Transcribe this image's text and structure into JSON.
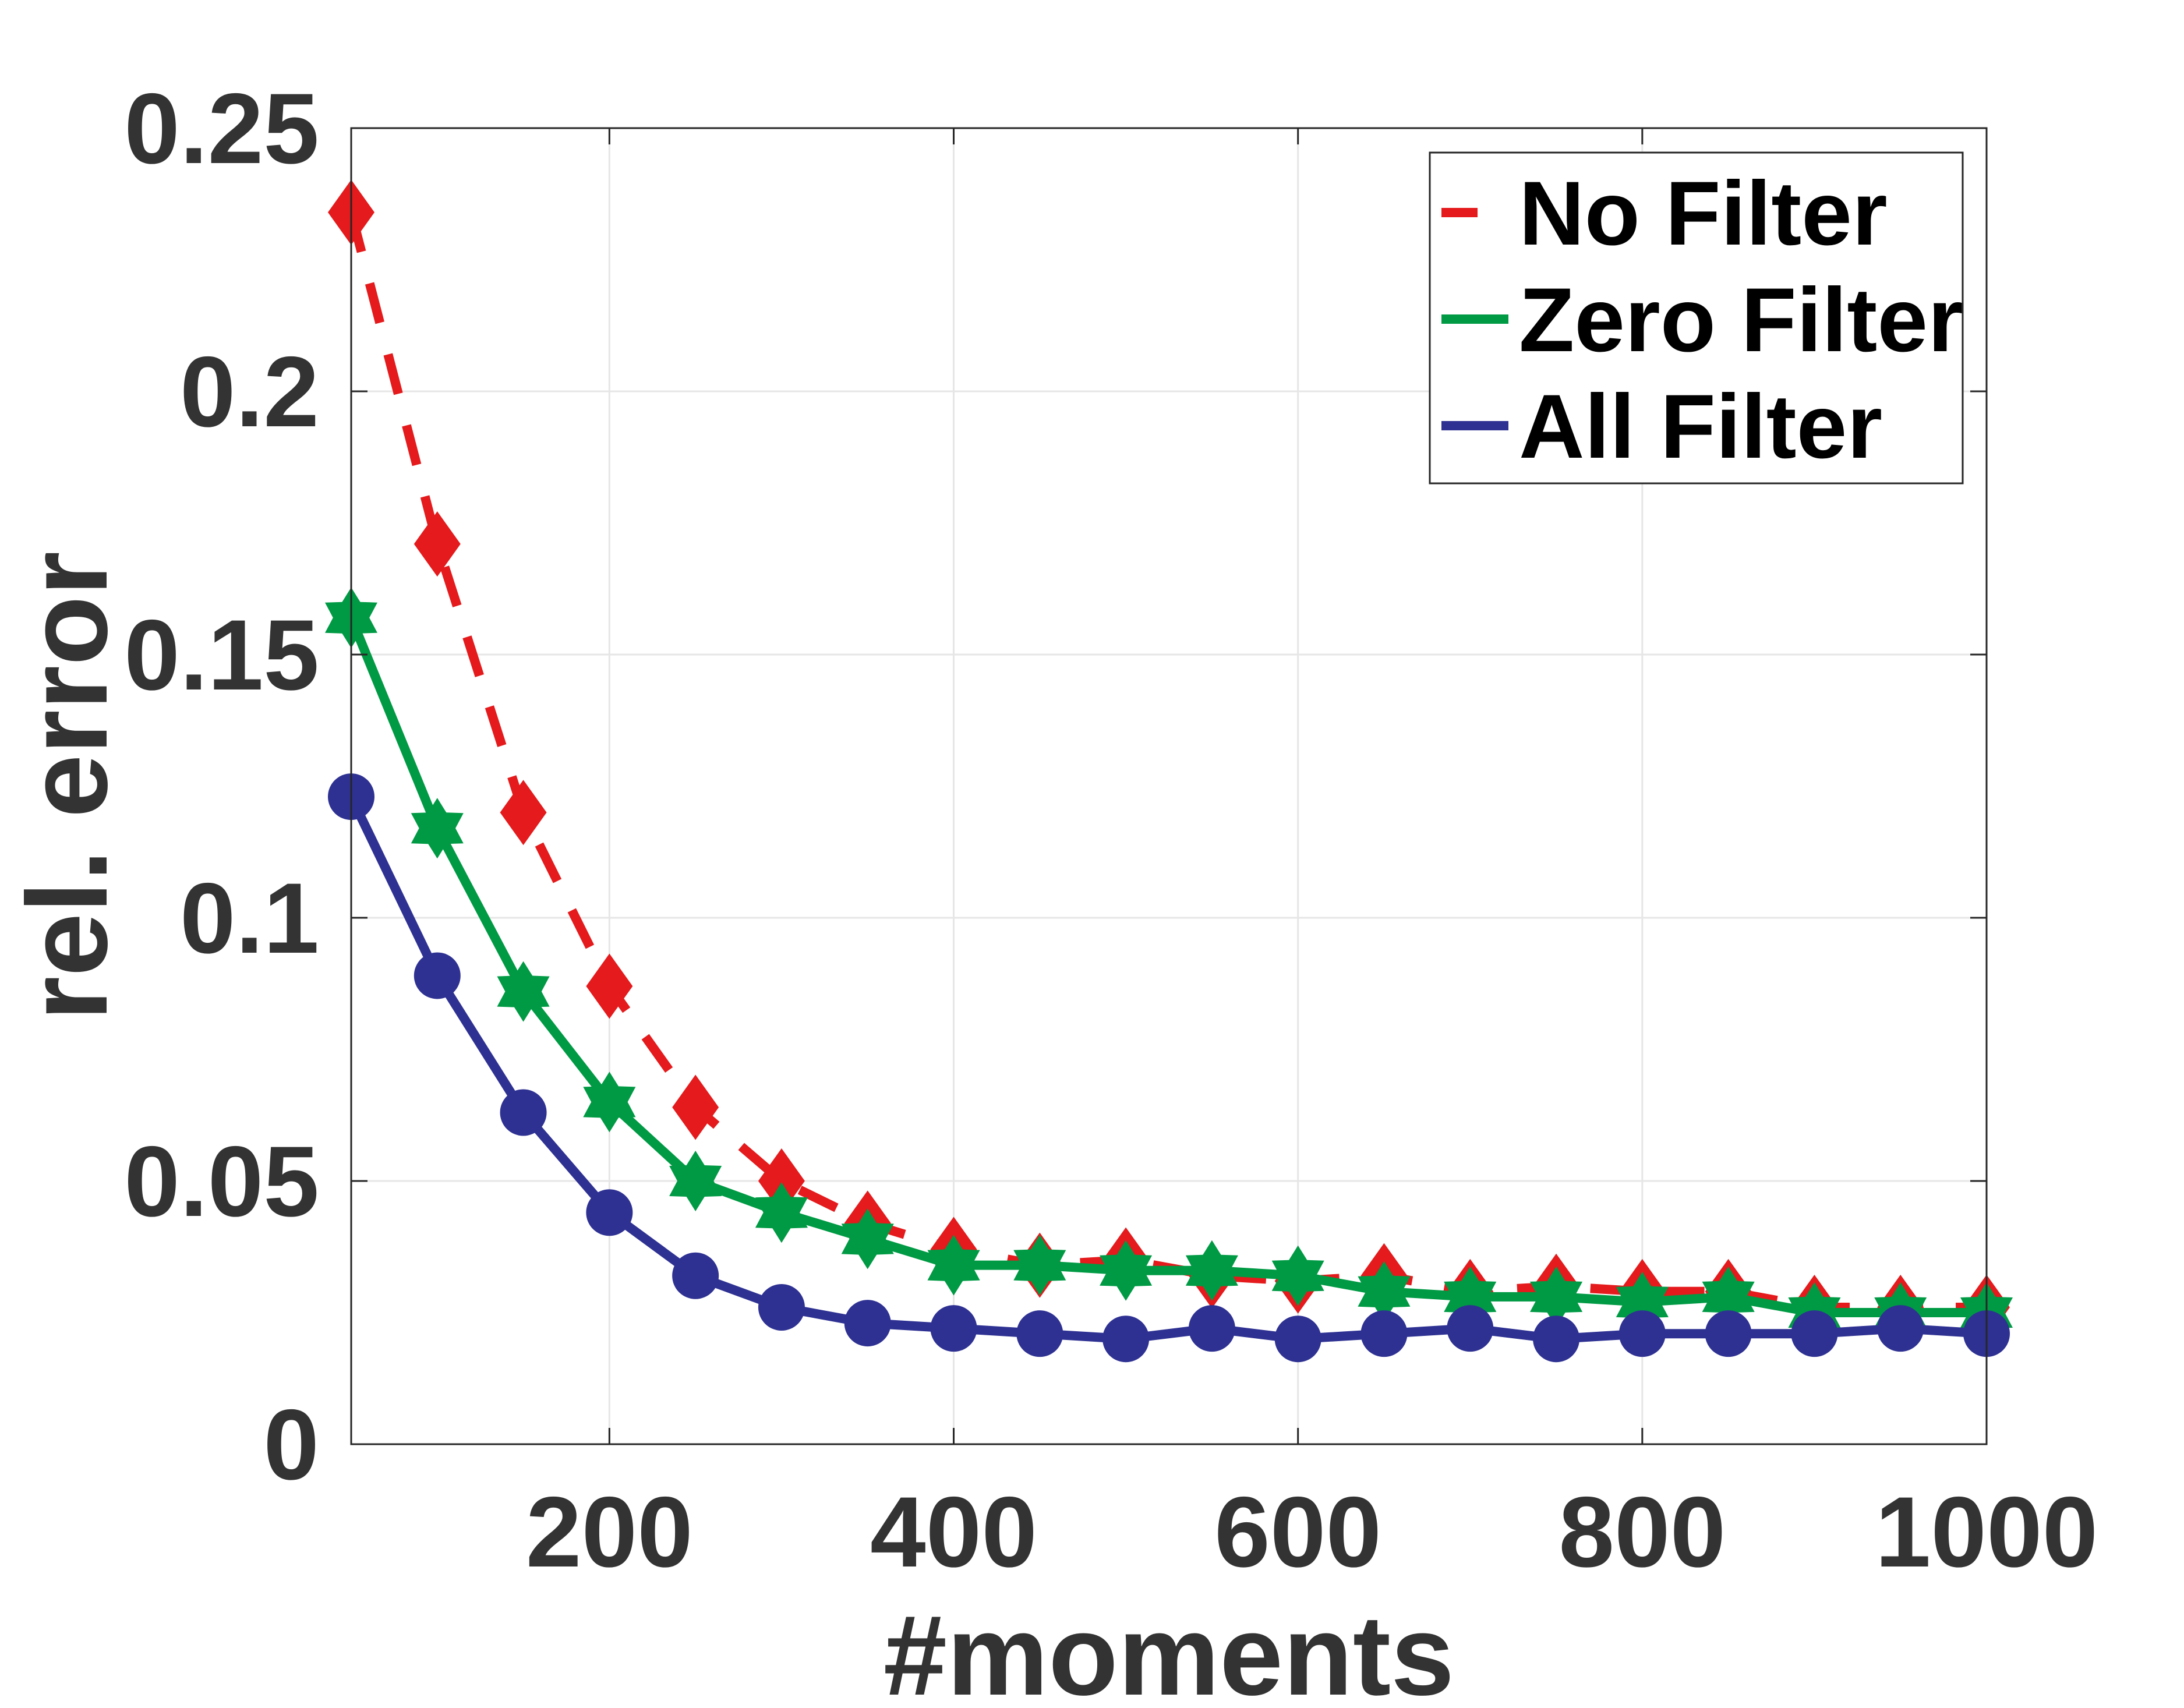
{
  "chart_data": {
    "type": "line",
    "xlabel": "#moments",
    "ylabel": "rel. error",
    "xlim": [
      50,
      1000
    ],
    "ylim": [
      0,
      0.25
    ],
    "xticks": [
      200,
      400,
      600,
      800,
      1000
    ],
    "yticks": [
      0,
      0.05,
      0.1,
      0.15,
      0.2,
      0.25
    ],
    "xtick_labels": [
      "200",
      "400",
      "600",
      "800",
      "1000"
    ],
    "ytick_labels": [
      "0",
      "0.05",
      "0.1",
      "0.15",
      "0.2",
      "0.25"
    ],
    "grid": true,
    "legend_position": "top-right",
    "x": [
      50,
      100,
      150,
      200,
      250,
      300,
      350,
      400,
      450,
      500,
      550,
      600,
      650,
      700,
      750,
      800,
      850,
      900,
      950,
      1000
    ],
    "series": [
      {
        "name": "No Filter",
        "color": "#e41a1c",
        "line_style": "dashed",
        "marker": "diamond",
        "values": [
          0.234,
          0.171,
          0.12,
          0.087,
          0.064,
          0.05,
          0.042,
          0.037,
          0.034,
          0.035,
          0.032,
          0.031,
          0.032,
          0.029,
          0.03,
          0.029,
          0.029,
          0.026,
          0.026,
          0.026
        ]
      },
      {
        "name": "Zero Filter",
        "color": "#009a44",
        "line_style": "solid",
        "marker": "hexagram",
        "values": [
          0.157,
          0.117,
          0.086,
          0.065,
          0.05,
          0.044,
          0.039,
          0.034,
          0.034,
          0.033,
          0.033,
          0.032,
          0.029,
          0.028,
          0.028,
          0.027,
          0.028,
          0.025,
          0.025,
          0.025
        ]
      },
      {
        "name": "All Filter",
        "color": "#2e3192",
        "line_style": "solid",
        "marker": "circle",
        "values": [
          0.123,
          0.089,
          0.063,
          0.044,
          0.032,
          0.026,
          0.023,
          0.022,
          0.021,
          0.02,
          0.022,
          0.02,
          0.021,
          0.022,
          0.02,
          0.021,
          0.021,
          0.021,
          0.022,
          0.021
        ]
      }
    ]
  }
}
